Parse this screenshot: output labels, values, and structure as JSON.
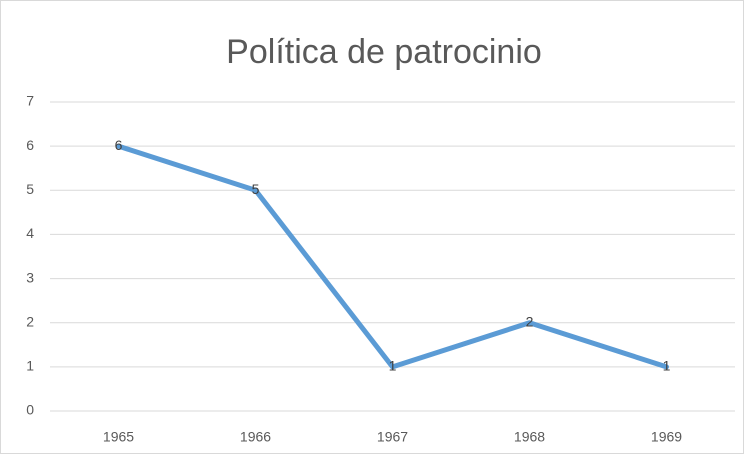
{
  "chart_data": {
    "type": "line",
    "title": "Política de patrocinio",
    "categories": [
      "1965",
      "1966",
      "1967",
      "1968",
      "1969"
    ],
    "values": [
      6,
      5,
      1,
      2,
      1
    ],
    "color": "#5b9bd5",
    "ylim": [
      0,
      7
    ],
    "yticks": [
      0,
      1,
      2,
      3,
      4,
      5,
      6,
      7
    ],
    "grid": true
  }
}
